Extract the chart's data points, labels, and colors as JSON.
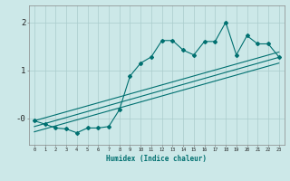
{
  "title": "",
  "xlabel": "Humidex (Indice chaleur)",
  "bg_color": "#cce8e8",
  "line_color": "#007070",
  "grid_color": "#aacccc",
  "xlim": [
    -0.5,
    23.5
  ],
  "ylim": [
    -0.55,
    2.35
  ],
  "yticks": [
    0,
    1,
    2
  ],
  "ytick_labels": [
    "-0",
    "1",
    "2"
  ],
  "xticks": [
    0,
    1,
    2,
    3,
    4,
    5,
    6,
    7,
    8,
    9,
    10,
    11,
    12,
    13,
    14,
    15,
    16,
    17,
    18,
    19,
    20,
    21,
    22,
    23
  ],
  "main_line": [
    [
      0,
      -0.05
    ],
    [
      1,
      -0.12
    ],
    [
      2,
      -0.2
    ],
    [
      3,
      -0.22
    ],
    [
      4,
      -0.3
    ],
    [
      5,
      -0.2
    ],
    [
      6,
      -0.2
    ],
    [
      7,
      -0.17
    ],
    [
      8,
      0.18
    ],
    [
      9,
      0.88
    ],
    [
      10,
      1.15
    ],
    [
      11,
      1.28
    ],
    [
      12,
      1.62
    ],
    [
      13,
      1.62
    ],
    [
      14,
      1.42
    ],
    [
      15,
      1.32
    ],
    [
      16,
      1.6
    ],
    [
      17,
      1.6
    ],
    [
      18,
      2.0
    ],
    [
      19,
      1.32
    ],
    [
      20,
      1.72
    ],
    [
      21,
      1.55
    ],
    [
      22,
      1.55
    ],
    [
      23,
      1.28
    ]
  ],
  "upper_line": [
    [
      0,
      -0.05
    ],
    [
      23,
      1.38
    ]
  ],
  "lower_line": [
    [
      0,
      -0.28
    ],
    [
      23,
      1.15
    ]
  ],
  "mid_line": [
    [
      0,
      -0.17
    ],
    [
      23,
      1.27
    ]
  ]
}
